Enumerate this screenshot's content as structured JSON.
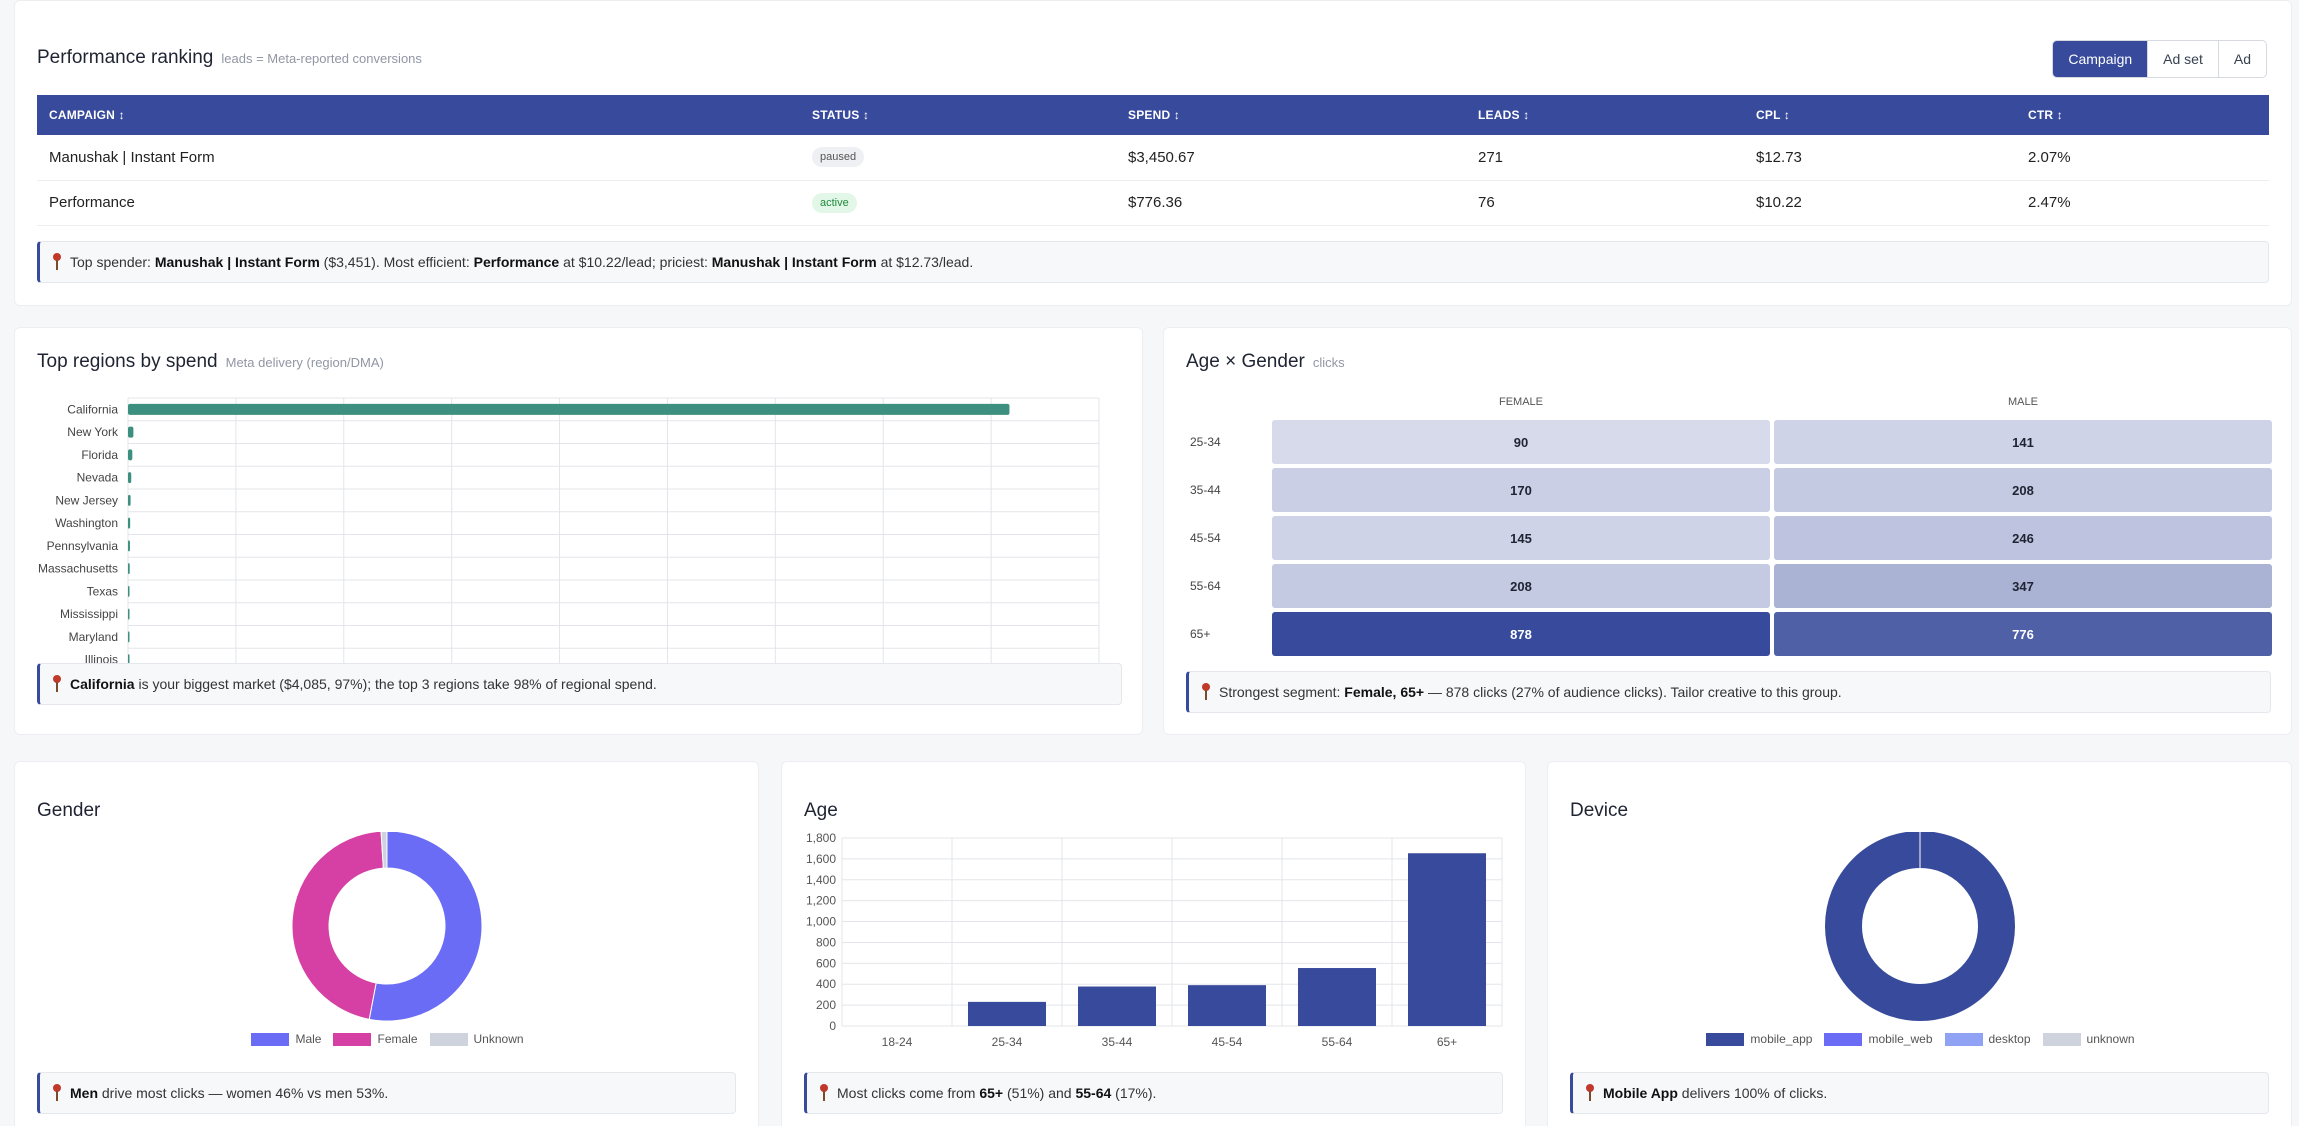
{
  "performance": {
    "title": "Performance ranking",
    "subtitle": "leads = Meta-reported conversions",
    "toggle": [
      "Campaign",
      "Ad set",
      "Ad"
    ],
    "columns": [
      "CAMPAIGN ↕",
      "STATUS ↕",
      "SPEND ↕",
      "LEADS ↕",
      "CPL ↕",
      "CTR ↕"
    ],
    "rows": [
      {
        "campaign": "Manushak | Instant Form",
        "status": "paused",
        "spend": "$3,450.67",
        "leads": "271",
        "cpl": "$12.73",
        "ctr": "2.07%"
      },
      {
        "campaign": "Performance",
        "status": "active",
        "spend": "$776.36",
        "leads": "76",
        "cpl": "$10.22",
        "ctr": "2.47%"
      }
    ],
    "insight": {
      "t1": "Top spender: ",
      "b1": "Manushak | Instant Form",
      "t2": " ($3,451). Most efficient: ",
      "b2": "Performance",
      "t3": " at $10.22/lead; priciest: ",
      "b3": "Manushak | Instant Form",
      "t4": " at $12.73/lead."
    }
  },
  "regions": {
    "title": "Top regions by spend",
    "subtitle": "Meta delivery (region/DMA)",
    "insight": {
      "b1": "California",
      "t1": " is your biggest market ($4,085, 97%); the top 3 regions take 98% of regional spend."
    }
  },
  "age_gender": {
    "title": "Age × Gender",
    "subtitle": "clicks",
    "columns": [
      "FEMALE",
      "MALE"
    ],
    "rows": [
      {
        "age": "25-34",
        "female": 90,
        "male": 141
      },
      {
        "age": "35-44",
        "female": 170,
        "male": 208
      },
      {
        "age": "45-54",
        "female": 145,
        "male": 246
      },
      {
        "age": "55-64",
        "female": 208,
        "male": 347
      },
      {
        "age": "65+",
        "female": 878,
        "male": 776
      }
    ],
    "insight": {
      "t1": "Strongest segment: ",
      "b1": "Female, 65+",
      "t2": " — 878 clicks (27% of audience clicks). Tailor creative to this group."
    }
  },
  "gender": {
    "title": "Gender",
    "insight": {
      "b1": "Men",
      "t1": " drive most clicks — women 46% vs men 53%."
    }
  },
  "age": {
    "title": "Age",
    "insight": {
      "t1": "Most clicks come from ",
      "b1": "65+",
      "t2": " (51%) and ",
      "b2": "55-64",
      "t3": " (17%)."
    }
  },
  "device": {
    "title": "Device",
    "insight": {
      "b1": "Mobile App",
      "t1": " delivers 100% of clicks."
    }
  },
  "chart_data": [
    {
      "type": "bar",
      "orientation": "horizontal",
      "categories": [
        "California",
        "New York",
        "Florida",
        "Nevada",
        "New Jersey",
        "Washington",
        "Pennsylvania",
        "Massachusetts",
        "Texas",
        "Mississippi",
        "Maryland",
        "Illinois"
      ],
      "values": [
        4085,
        25,
        20,
        15,
        12,
        10,
        9,
        8,
        7,
        6,
        5,
        4
      ],
      "xlim": [
        0,
        4500
      ],
      "xticks": [
        "$0",
        "$500",
        "$1000",
        "$1500",
        "$2000",
        "$2500",
        "$3000",
        "$3500",
        "$4000",
        "$4500"
      ],
      "color": "#3d8f7f",
      "grid": true
    },
    {
      "type": "pie",
      "labels": [
        "Male",
        "Female",
        "Unknown"
      ],
      "values": [
        53,
        46,
        1
      ],
      "colors": [
        "#6a6cf6",
        "#d63fa4",
        "#cfd3dd"
      ],
      "legend": "bottom"
    },
    {
      "type": "bar",
      "categories": [
        "18-24",
        "25-34",
        "35-44",
        "45-54",
        "55-64",
        "65+"
      ],
      "values": [
        0,
        231,
        378,
        391,
        555,
        1654
      ],
      "ylim": [
        0,
        1800
      ],
      "yticks": [
        "0",
        "200",
        "400",
        "600",
        "800",
        "1,000",
        "1,200",
        "1,400",
        "1,600",
        "1,800"
      ],
      "color": "#374a9b",
      "grid": true
    },
    {
      "type": "pie",
      "labels": [
        "mobile_app",
        "mobile_web",
        "desktop",
        "unknown"
      ],
      "values": [
        100,
        0,
        0,
        0
      ],
      "colors": [
        "#374a9b",
        "#6a6cf6",
        "#8fa2f4",
        "#cfd3dd"
      ],
      "legend": "bottom"
    }
  ]
}
